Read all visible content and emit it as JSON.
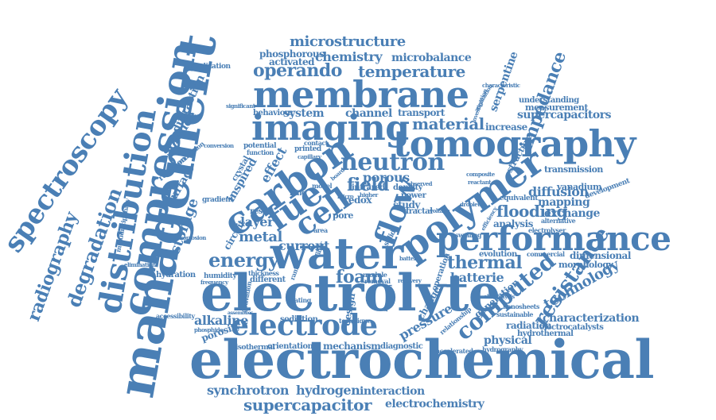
{
  "colors": {
    "text": "#4a7fb5",
    "background": "#ffffff"
  },
  "words": {
    "electrochemical": "electrochemical",
    "management": "management",
    "compression": "compression",
    "performance": "performance",
    "electrolyte": "electrolyte",
    "water": "water",
    "tomography": "tomography",
    "membrane": "membrane",
    "imaging": "imaging",
    "polymer": "polymer",
    "carbon": "carbon",
    "fuel": "fuel",
    "cell": "cell",
    "flow": "flow",
    "electrode": "electrode",
    "neutron": "neutron",
    "distribution": "distribution",
    "spectroscopy": "spectroscopy",
    "degradation": "degradation",
    "radiography": "radiography",
    "microstructure": "microstructure",
    "operando": "operando",
    "temperature": "temperature",
    "chemistry": "chemistry",
    "microbalance": "microbalance",
    "activated": "activated",
    "phosphorous": "phosphorous",
    "impedance": "impedance",
    "supercapacitors": "supercapacitors",
    "measurement": "measurement",
    "understanding": "understanding",
    "increase": "increase",
    "serpentine": "serpentine",
    "material": "material",
    "channel": "channel",
    "transport": "transport",
    "system": "system",
    "behaviour": "behaviour",
    "field": "field",
    "porous": "porous",
    "inspired": "inspired",
    "effect": "effect",
    "energy": "energy",
    "metal": "metal",
    "layer": "layer",
    "current": "current",
    "storage": "storage",
    "surface": "surface",
    "science": "science",
    "diffraction": "diffraction",
    "resistance": "resistance",
    "computed": "computed",
    "thermal": "thermal",
    "flooding": "flooding",
    "diffusion": "diffusion",
    "mapping": "mapping",
    "exchange": "exchange",
    "technology": "technology",
    "structure": "structure",
    "foam": "foam",
    "batterie": "batterie",
    "physical": "physical",
    "pressure": "pressure",
    "alkaline": "alkaline",
    "porosity": "porosity",
    "mechanism": "mechanism",
    "orientation": "orientation",
    "isothermal": "isothermal",
    "diagnostic": "diagnostic",
    "synchrotron": "synchrotron",
    "hydrogen": "hydrogen",
    "interaction": "interaction",
    "supercapacitor": "supercapacitor",
    "electrochemistry": "electrochemistry",
    "characterization": "characterization",
    "radiation": "radiation",
    "hydrothermal": "hydrothermal",
    "electrocatalysts": "electrocatalysts",
    "dimensional": "dimensional",
    "morphology": "morphology",
    "evolution": "evolution",
    "generation": "generation",
    "transmission": "transmission",
    "vanadium": "vanadium",
    "development": "development",
    "equivalent": "equivalent",
    "analysis": "analysis",
    "alternative": "alternative",
    "sustainable": "sustainable",
    "nanosheets": "nanosheets",
    "hydrography": "hydrography",
    "accelerated": "accelerated",
    "relationship": "relationship",
    "change": "change",
    "sodiation": "sodiation",
    "technique": "technique",
    "hydration": "hydration",
    "humidity": "humidity",
    "thickness": "thickness",
    "different": "different",
    "frequency": "frequency",
    "accessibility": "accessibility",
    "phosphide": "phosphide",
    "elimination": "elimination",
    "corrosion": "corrosion",
    "multidisciplinary": "multidisciplinary",
    "visualization": "visualization",
    "reaction": "reaction",
    "production": "production",
    "conversion": "conversion",
    "potential": "potential",
    "function": "function",
    "printed": "printed",
    "contact": "contact",
    "capillary": "capillary",
    "crystal": "crystal",
    "gradient": "gradient",
    "circuit": "circuit",
    "result": "result",
    "lung": "lung",
    "model": "model",
    "pore": "pore",
    "redox": "redox",
    "infrared": "infrared",
    "density": "density",
    "power": "power",
    "study": "study",
    "solid": "solid",
    "area": "area",
    "raman": "raman",
    "module": "module",
    "removal": "removal",
    "heating": "heating",
    "recovery": "recovery",
    "formation": "formation",
    "design": "design",
    "activation": "activation",
    "battery": "battery",
    "operation": "operation",
    "commercial": "commercial",
    "electrolyser": "electrolyser",
    "reactant": "reactant",
    "composite": "composite",
    "application": "application",
    "investigation": "investigation",
    "significant": "significant",
    "characteristic": "characteristic",
    "electrolysis": "electrolysis",
    "swelling": "swelling",
    "efficiency": "efficiency",
    "droplet": "droplet",
    "board": "board",
    "micro": "micro",
    "higher": "higher",
    "observed": "observed",
    "voltage": "voltage",
    "fractal": "fractal",
    "fiber": "fiber",
    "assemblies": "assemblies"
  }
}
